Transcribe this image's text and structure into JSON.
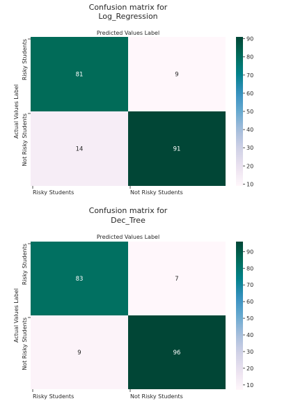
{
  "chart_data": [
    {
      "type": "heatmap",
      "title_lines": [
        "Confusion matrix for",
        "Log_Regression"
      ],
      "xlabel": "Predicted Values Label",
      "ylabel": "Actual Values Label",
      "x_categories": [
        "Risky Students",
        "Not Risky Students"
      ],
      "y_categories": [
        "Risky Students",
        "Not Risky Students"
      ],
      "values": [
        [
          81,
          9
        ],
        [
          14,
          91
        ]
      ],
      "colormap": "PuBuGn",
      "colorbar": {
        "min": 9,
        "max": 91,
        "ticks": [
          10,
          20,
          30,
          40,
          50,
          60,
          70,
          80,
          90
        ]
      }
    },
    {
      "type": "heatmap",
      "title_lines": [
        "Confusion matrix for",
        "Dec_Tree"
      ],
      "xlabel": "Predicted Values Label",
      "ylabel": "Actual Values Label",
      "x_categories": [
        "Risky Students",
        "Not Risky Students"
      ],
      "y_categories": [
        "Risky Students",
        "Not Risky Students"
      ],
      "values": [
        [
          83,
          7
        ],
        [
          9,
          96
        ]
      ],
      "colormap": "PuBuGn",
      "colorbar": {
        "min": 7,
        "max": 96,
        "ticks": [
          10,
          20,
          30,
          40,
          50,
          60,
          70,
          80,
          90
        ]
      }
    }
  ]
}
